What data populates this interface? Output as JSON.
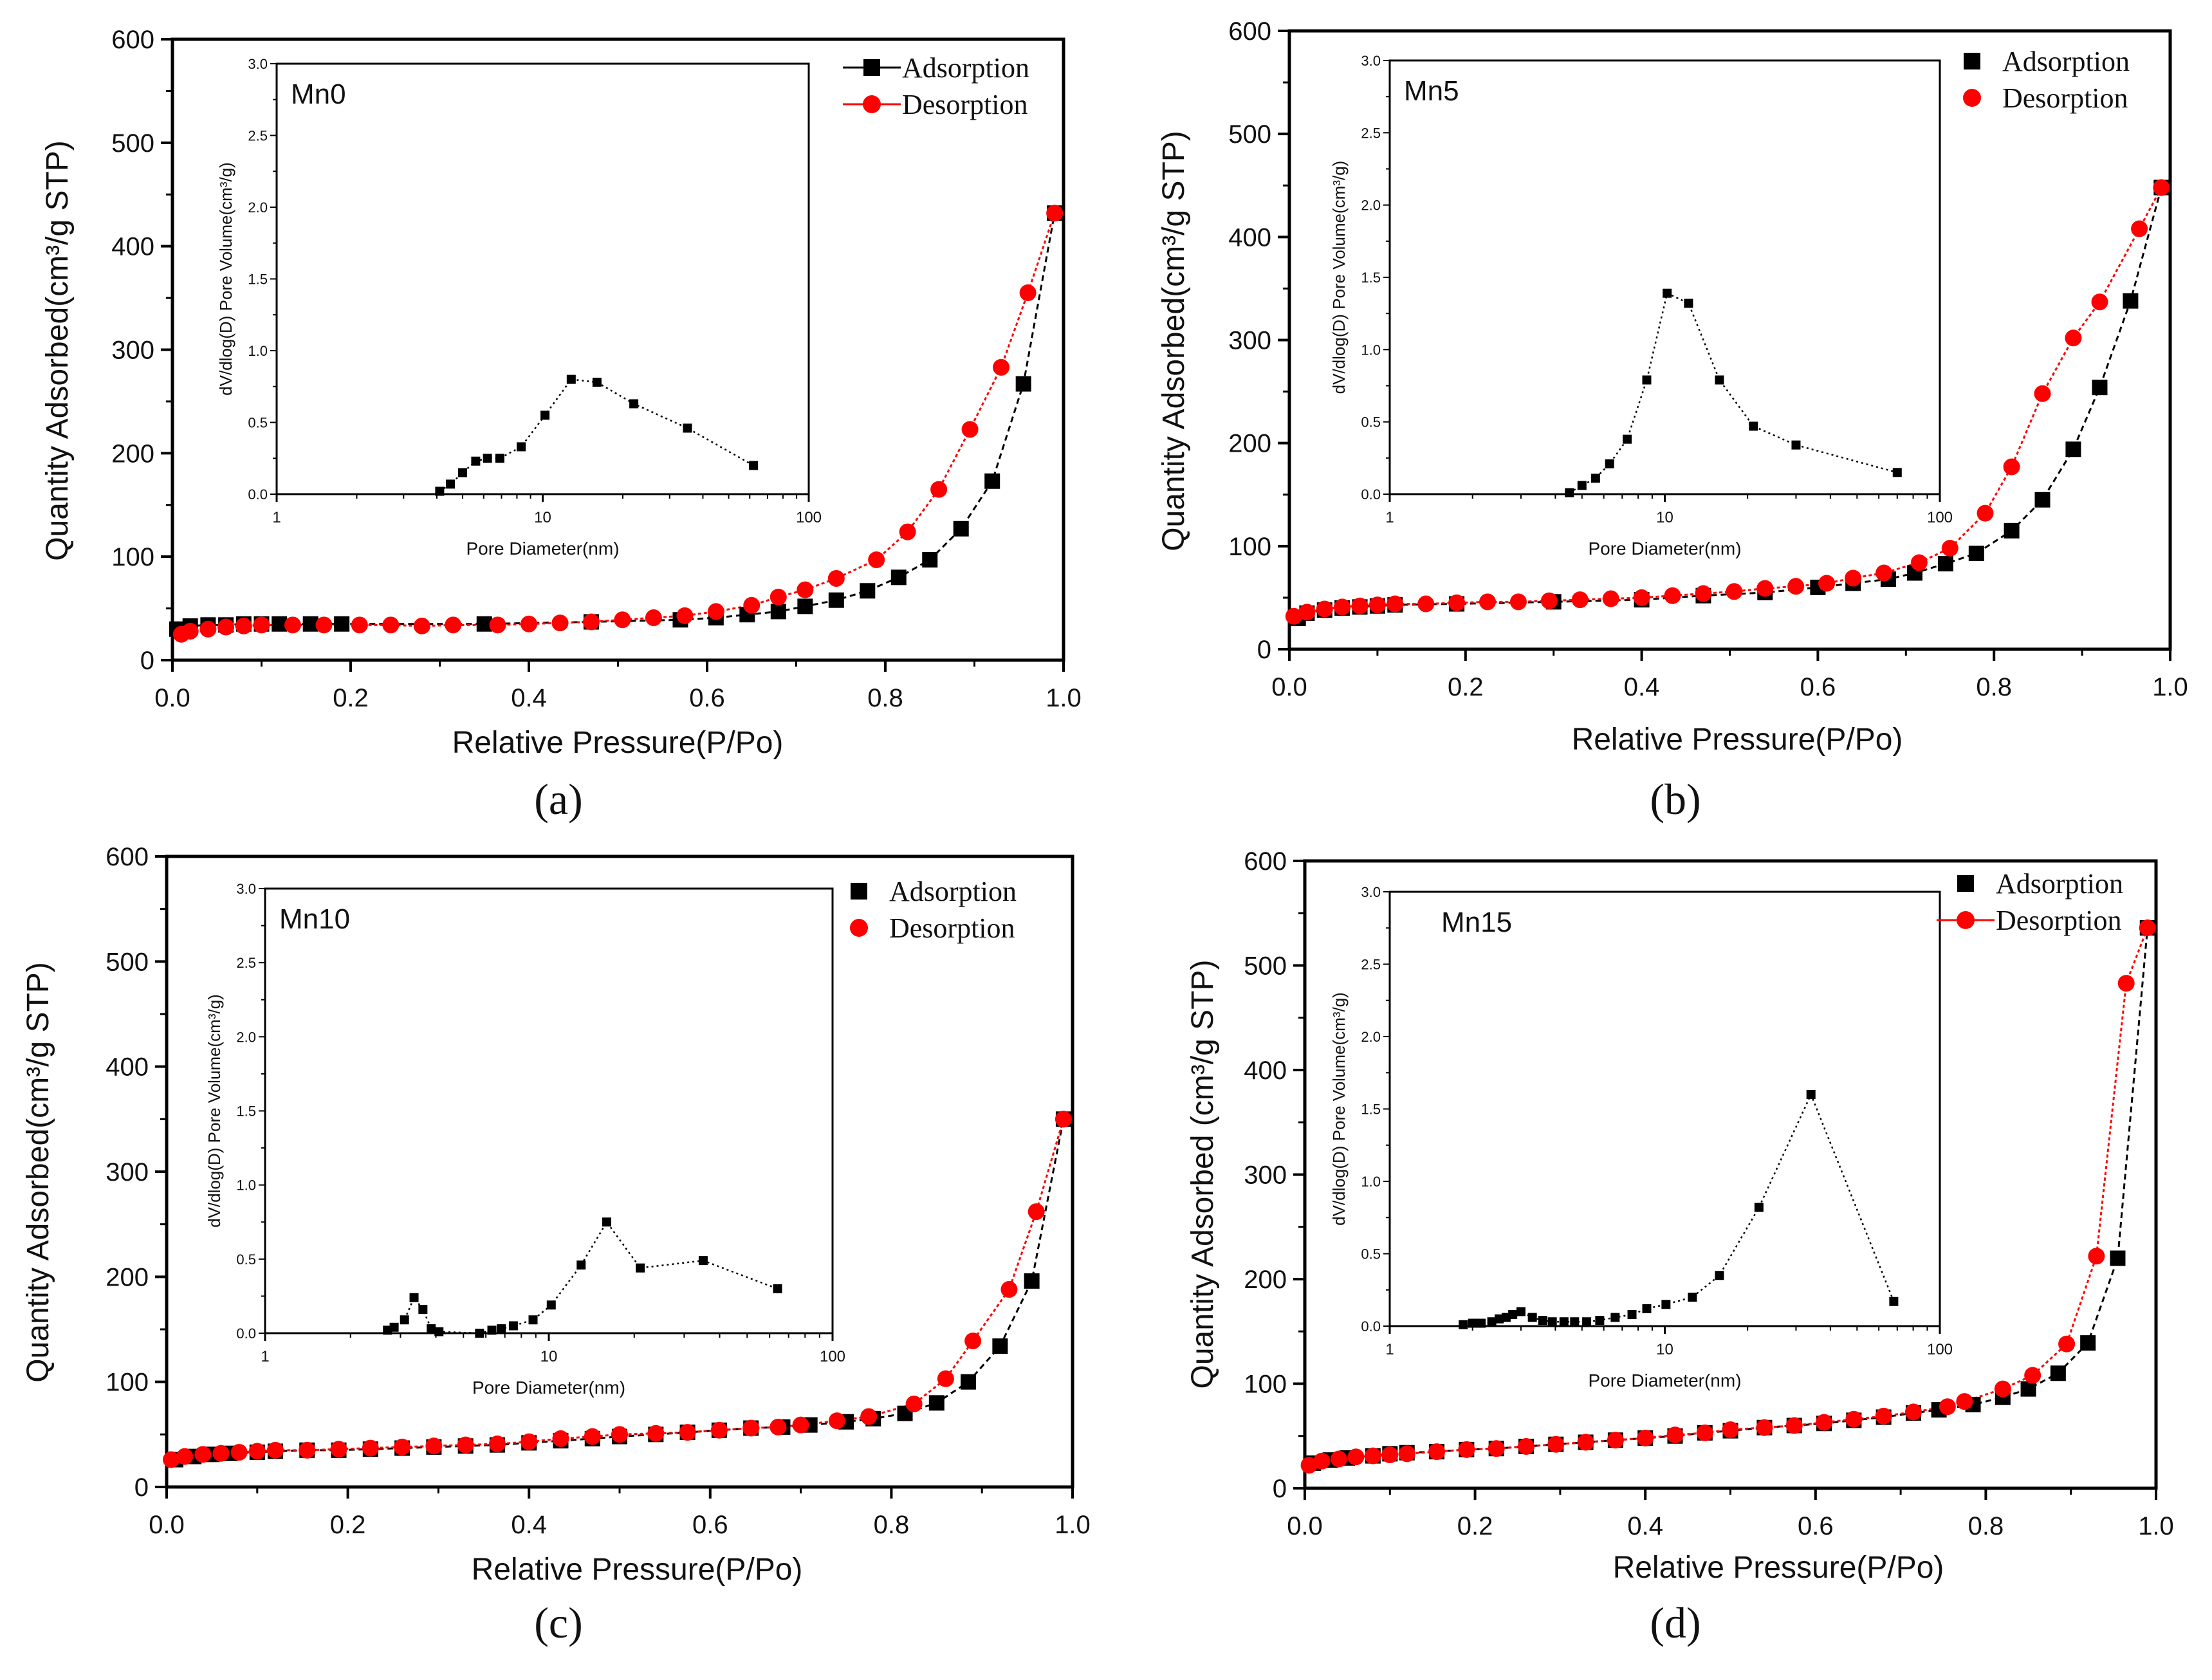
{
  "chart_data": [
    {
      "type": "scatter",
      "panel_caption": "(a)",
      "sample_label": "Mn0",
      "xlabel": "Relative Pressure(P/Po)",
      "ylabel": "Quantity Adsorbed(cm³/g STP)",
      "xlim": [
        0,
        1.0
      ],
      "ylim": [
        0,
        600
      ],
      "xticks": [
        "0.0",
        "0.2",
        "0.4",
        "0.6",
        "0.8",
        "1.0"
      ],
      "yticks": [
        "0",
        "100",
        "200",
        "300",
        "400",
        "500",
        "600"
      ],
      "legend": {
        "position": "top-right",
        "lines_shown": true,
        "adsorption": "Adsorption",
        "desorption": "Desorption"
      },
      "colors": {
        "adsorption": "#000000",
        "desorption": "#ff0000"
      },
      "series": [
        {
          "name": "Adsorption",
          "x": [
            0.005,
            0.02,
            0.04,
            0.06,
            0.08,
            0.1,
            0.12,
            0.155,
            0.19,
            0.35,
            0.47,
            0.57,
            0.61,
            0.645,
            0.68,
            0.71,
            0.745,
            0.78,
            0.815,
            0.85,
            0.885,
            0.92,
            0.955,
            0.99
          ],
          "y": [
            30,
            33,
            34,
            34,
            35,
            35,
            35,
            35,
            35,
            35,
            37,
            39,
            41,
            44,
            47,
            52,
            58,
            67,
            80,
            97,
            127,
            173,
            267,
            432
          ]
        },
        {
          "name": "Desorption",
          "x": [
            0.99,
            0.96,
            0.93,
            0.895,
            0.86,
            0.825,
            0.79,
            0.745,
            0.71,
            0.68,
            0.65,
            0.61,
            0.575,
            0.54,
            0.505,
            0.47,
            0.435,
            0.4,
            0.365,
            0.315,
            0.28,
            0.245,
            0.21,
            0.17,
            0.135,
            0.1,
            0.08,
            0.06,
            0.04,
            0.02,
            0.01
          ],
          "y": [
            432,
            355,
            283,
            223,
            165,
            124,
            97,
            79,
            68,
            61,
            53,
            47,
            43,
            41,
            39,
            37,
            36,
            35,
            34,
            34,
            33,
            34,
            34,
            34,
            34,
            34,
            33,
            32,
            30,
            28,
            25
          ]
        }
      ],
      "inset": {
        "type": "line",
        "xscale": "log",
        "xlabel": "Pore Diameter(nm)",
        "ylabel": "dV/dlog(D) Pore Volume(cm³/g)",
        "xlim": [
          1,
          100
        ],
        "ylim": [
          0,
          3.0
        ],
        "xticks": [
          "1",
          "10",
          "100"
        ],
        "yticks": [
          "0.0",
          "0.5",
          "1.0",
          "1.5",
          "2.0",
          "2.5",
          "3.0"
        ],
        "x": [
          4.1,
          4.5,
          5,
          5.6,
          6.2,
          6.9,
          8.3,
          10.2,
          12.8,
          16,
          22,
          35,
          62
        ],
        "y": [
          0.02,
          0.07,
          0.15,
          0.23,
          0.25,
          0.25,
          0.33,
          0.55,
          0.8,
          0.78,
          0.63,
          0.46,
          0.2
        ]
      }
    },
    {
      "type": "scatter",
      "panel_caption": "(b)",
      "sample_label": "Mn5",
      "xlabel": "Relative Pressure(P/Po)",
      "ylabel": "Quantity Adsorbed(cm³/g STP)",
      "xlim": [
        0,
        1.0
      ],
      "ylim": [
        0,
        600
      ],
      "xticks": [
        "0.0",
        "0.2",
        "0.4",
        "0.6",
        "0.8",
        "1.0"
      ],
      "yticks": [
        "0",
        "100",
        "200",
        "300",
        "400",
        "500",
        "600"
      ],
      "legend": {
        "position": "top-right",
        "lines_shown": false,
        "adsorption": "Adsorption",
        "desorption": "Desorption"
      },
      "colors": {
        "adsorption": "#000000",
        "desorption": "#ff0000"
      },
      "series": [
        {
          "name": "Adsorption",
          "x": [
            0.01,
            0.02,
            0.04,
            0.06,
            0.08,
            0.1,
            0.12,
            0.19,
            0.3,
            0.4,
            0.47,
            0.54,
            0.6,
            0.64,
            0.68,
            0.71,
            0.745,
            0.78,
            0.82,
            0.855,
            0.89,
            0.92,
            0.955,
            0.99
          ],
          "y": [
            30,
            35,
            38,
            40,
            41,
            42,
            43,
            44,
            46,
            48,
            52,
            55,
            60,
            64,
            68,
            74,
            83,
            93,
            115,
            145,
            194,
            254,
            338,
            448
          ]
        },
        {
          "name": "Desorption",
          "x": [
            0.99,
            0.965,
            0.92,
            0.89,
            0.855,
            0.82,
            0.79,
            0.75,
            0.715,
            0.675,
            0.64,
            0.61,
            0.575,
            0.54,
            0.505,
            0.47,
            0.435,
            0.4,
            0.365,
            0.33,
            0.295,
            0.26,
            0.225,
            0.19,
            0.155,
            0.12,
            0.1,
            0.08,
            0.06,
            0.04,
            0.02,
            0.005
          ],
          "y": [
            448,
            408,
            337,
            302,
            248,
            177,
            132,
            98,
            84,
            74,
            69,
            64,
            61,
            59,
            56,
            54,
            52,
            50,
            49,
            48,
            47,
            46,
            46,
            45,
            44,
            44,
            43,
            42,
            41,
            39,
            36,
            32
          ]
        }
      ],
      "inset": {
        "type": "line",
        "xscale": "log",
        "xlabel": "Pore Diameter(nm)",
        "ylabel": "dV/dlog(D) Pore Volume(cm³/g)",
        "xlim": [
          1,
          100
        ],
        "ylim": [
          0,
          3.0
        ],
        "xticks": [
          "1",
          "10",
          "100"
        ],
        "yticks": [
          "0.0",
          "0.5",
          "1.0",
          "1.5",
          "2.0",
          "2.5",
          "3.0"
        ],
        "x": [
          4.5,
          5,
          5.6,
          6.3,
          7.3,
          8.6,
          10.2,
          12.2,
          15.8,
          21,
          30,
          70
        ],
        "y": [
          0.01,
          0.06,
          0.11,
          0.21,
          0.38,
          0.79,
          1.39,
          1.32,
          0.79,
          0.47,
          0.34,
          0.15
        ]
      }
    },
    {
      "type": "scatter",
      "panel_caption": "(c)",
      "sample_label": "Mn10",
      "xlabel": "Relative Pressure(P/Po)",
      "ylabel": "Quantity Adsorbed(cm³/g STP)",
      "xlim": [
        0,
        1.0
      ],
      "ylim": [
        0,
        600
      ],
      "xticks": [
        "0.0",
        "0.2",
        "0.4",
        "0.6",
        "0.8",
        "1.0"
      ],
      "yticks": [
        "0",
        "100",
        "200",
        "300",
        "400",
        "500",
        "600"
      ],
      "legend": {
        "position": "top-right",
        "lines_shown": false,
        "adsorption": "Adsorption",
        "desorption": "Desorption"
      },
      "colors": {
        "adsorption": "#000000",
        "desorption": "#ff0000"
      },
      "series": [
        {
          "name": "Adsorption",
          "x": [
            0.01,
            0.03,
            0.05,
            0.07,
            0.1,
            0.12,
            0.155,
            0.19,
            0.225,
            0.26,
            0.295,
            0.33,
            0.365,
            0.4,
            0.435,
            0.47,
            0.5,
            0.54,
            0.575,
            0.61,
            0.645,
            0.68,
            0.71,
            0.75,
            0.78,
            0.815,
            0.85,
            0.885,
            0.92,
            0.955,
            0.99
          ],
          "y": [
            26,
            29,
            31,
            32,
            33,
            34,
            35,
            35,
            36,
            37,
            38,
            39,
            40,
            42,
            44,
            46,
            48,
            50,
            52,
            54,
            56,
            57,
            59,
            62,
            65,
            70,
            80,
            100,
            134,
            196,
            350
          ]
        },
        {
          "name": "Desorption",
          "x": [
            0.99,
            0.96,
            0.93,
            0.89,
            0.86,
            0.825,
            0.775,
            0.74,
            0.7,
            0.675,
            0.645,
            0.61,
            0.575,
            0.54,
            0.5,
            0.47,
            0.435,
            0.4,
            0.365,
            0.33,
            0.295,
            0.26,
            0.225,
            0.19,
            0.155,
            0.12,
            0.1,
            0.08,
            0.06,
            0.04,
            0.02,
            0.005
          ],
          "y": [
            350,
            262,
            188,
            139,
            103,
            79,
            67,
            63,
            59,
            57,
            56,
            54,
            52,
            51,
            50,
            48,
            46,
            43,
            41,
            40,
            39,
            38,
            37,
            36,
            35,
            35,
            34,
            33,
            32,
            31,
            29,
            26
          ]
        }
      ],
      "inset": {
        "type": "line",
        "xscale": "log",
        "xlabel": "Pore Diameter(nm)",
        "ylabel": "dV/dlog(D) Pore Volume(cm³/g)",
        "xlim": [
          1,
          100
        ],
        "ylim": [
          0,
          3.0
        ],
        "xticks": [
          "1",
          "10",
          "100"
        ],
        "yticks": [
          "0.0",
          "0.5",
          "1.0",
          "1.5",
          "2.0",
          "2.5",
          "3.0"
        ],
        "x": [
          2.7,
          2.85,
          3.1,
          3.35,
          3.6,
          3.85,
          4.1,
          5.7,
          6.3,
          6.8,
          7.5,
          8.8,
          10.2,
          13,
          16,
          21,
          35,
          64
        ],
        "y": [
          0.02,
          0.04,
          0.09,
          0.24,
          0.16,
          0.03,
          0.01,
          0.0,
          0.02,
          0.03,
          0.05,
          0.09,
          0.19,
          0.46,
          0.75,
          0.44,
          0.49,
          0.3
        ]
      }
    },
    {
      "type": "scatter",
      "panel_caption": "(d)",
      "sample_label": "Mn15",
      "xlabel": "Relative Pressure(P/Po)",
      "ylabel": "Quantity Adsorbed (cm³/g STP)",
      "xlim": [
        0,
        1.0
      ],
      "ylim": [
        0,
        600
      ],
      "xticks": [
        "0.0",
        "0.2",
        "0.4",
        "0.6",
        "0.8",
        "1.0"
      ],
      "yticks": [
        "0",
        "100",
        "200",
        "300",
        "400",
        "500",
        "600"
      ],
      "legend": {
        "position": "top-right",
        "lines_shown": "desorption-only",
        "adsorption": "Adsorption",
        "desorption": "Desorption"
      },
      "colors": {
        "adsorption": "#000000",
        "desorption": "#ff0000"
      },
      "series": [
        {
          "name": "Adsorption",
          "x": [
            0.01,
            0.03,
            0.05,
            0.08,
            0.1,
            0.12,
            0.155,
            0.19,
            0.225,
            0.26,
            0.295,
            0.33,
            0.365,
            0.4,
            0.435,
            0.47,
            0.5,
            0.54,
            0.575,
            0.61,
            0.645,
            0.68,
            0.715,
            0.745,
            0.785,
            0.82,
            0.85,
            0.885,
            0.92,
            0.955,
            0.99
          ],
          "y": [
            24,
            27,
            29,
            31,
            33,
            34,
            35,
            37,
            38,
            40,
            42,
            44,
            46,
            48,
            50,
            53,
            55,
            58,
            60,
            62,
            65,
            68,
            72,
            75,
            80,
            87,
            95,
            110,
            139,
            220,
            536
          ]
        },
        {
          "name": "Desorption",
          "x": [
            0.99,
            0.965,
            0.93,
            0.895,
            0.855,
            0.82,
            0.775,
            0.755,
            0.715,
            0.68,
            0.645,
            0.61,
            0.575,
            0.54,
            0.5,
            0.47,
            0.435,
            0.4,
            0.365,
            0.33,
            0.295,
            0.26,
            0.225,
            0.19,
            0.155,
            0.12,
            0.1,
            0.08,
            0.06,
            0.04,
            0.02,
            0.005
          ],
          "y": [
            536,
            483,
            222,
            138,
            108,
            95,
            83,
            78,
            73,
            69,
            66,
            63,
            60,
            58,
            56,
            53,
            51,
            48,
            46,
            44,
            42,
            40,
            38,
            37,
            35,
            33,
            32,
            31,
            30,
            28,
            26,
            22
          ]
        }
      ],
      "inset": {
        "type": "line",
        "xscale": "log",
        "xlabel": "Pore Diameter(nm)",
        "ylabel": "dV/dlog(D) Pore Volume(cm³/g)",
        "xlim": [
          1,
          100
        ],
        "ylim": [
          0,
          3.0
        ],
        "xticks": [
          "1",
          "10",
          "100"
        ],
        "yticks": [
          "0.0",
          "0.5",
          "1.0",
          "1.5",
          "2.0",
          "2.5",
          "3.0"
        ],
        "x": [
          1.85,
          2.0,
          2.15,
          2.35,
          2.5,
          2.65,
          2.8,
          3.0,
          3.3,
          3.6,
          3.9,
          4.3,
          4.7,
          5.2,
          5.8,
          6.6,
          7.6,
          8.6,
          10.1,
          12.6,
          15.8,
          22,
          34,
          68
        ],
        "y": [
          0.01,
          0.02,
          0.02,
          0.03,
          0.05,
          0.06,
          0.08,
          0.1,
          0.06,
          0.04,
          0.03,
          0.03,
          0.03,
          0.03,
          0.04,
          0.06,
          0.08,
          0.12,
          0.15,
          0.2,
          0.35,
          0.82,
          1.6,
          0.17
        ]
      }
    }
  ]
}
